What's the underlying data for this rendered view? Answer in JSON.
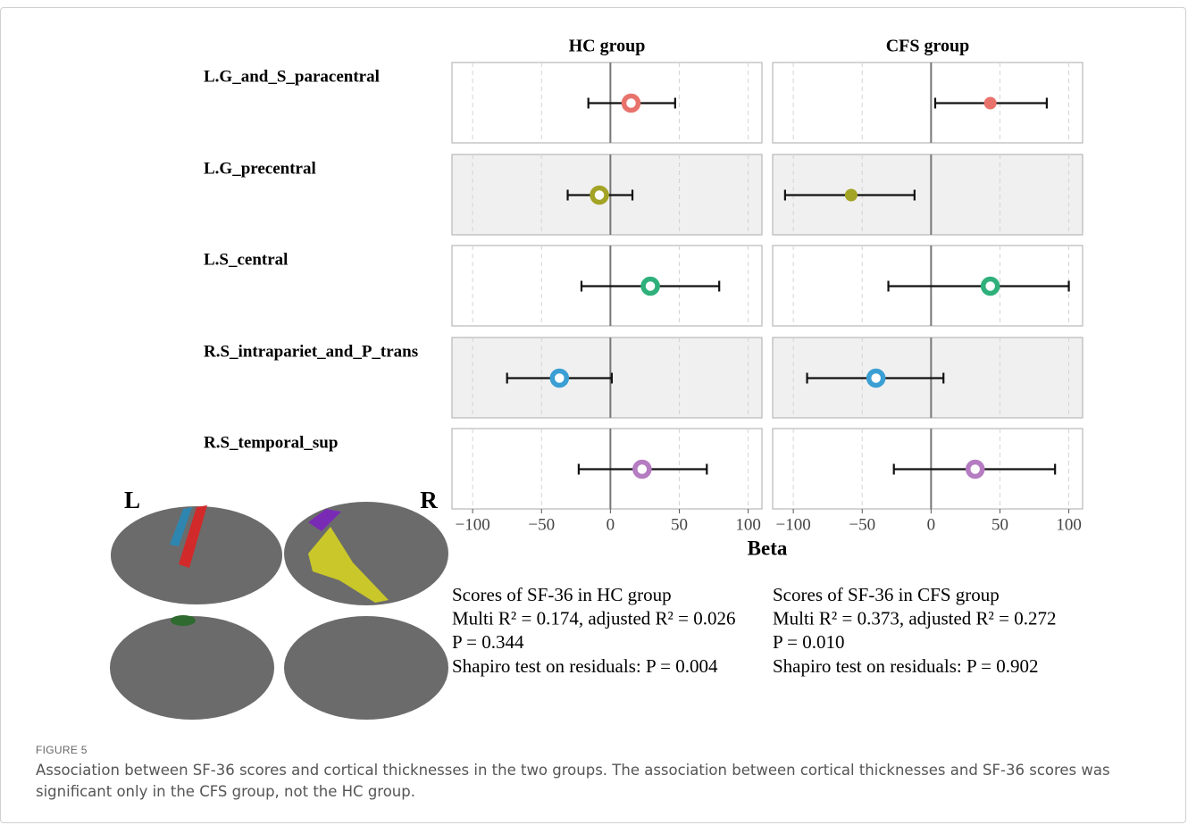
{
  "chart_data": [
    {
      "type": "forest",
      "title": "HC group",
      "categories": [
        "L.G_and_S_paracentral",
        "L.G_precentral",
        "L.S_central",
        "R.S_intrapariet_and_P_trans",
        "R.S_temporal_sup"
      ],
      "values": [
        15,
        -8,
        29,
        -37,
        23
      ],
      "lower": [
        -16,
        -31,
        -21,
        -75,
        -23
      ],
      "upper": [
        47,
        16,
        79,
        1,
        70
      ],
      "colors": [
        "#e8736c",
        "#a3a326",
        "#2fb07b",
        "#3b9fd4",
        "#b57cc2"
      ],
      "filled": [
        false,
        false,
        false,
        false,
        false
      ],
      "xlim": [
        -115,
        110
      ],
      "xticks": [
        {
          "value": -100,
          "label": "−100"
        },
        {
          "value": -50,
          "label": "−50"
        },
        0,
        50,
        100
      ],
      "stats": [
        "Scores of SF-36 in HC group",
        "Multi R² = 0.174, adjusted R² = 0.026",
        "P = 0.344",
        "Shapiro test on residuals: P = 0.004"
      ]
    },
    {
      "type": "forest",
      "title": "CFS group",
      "values": [
        43,
        -58,
        43,
        -40,
        32
      ],
      "lower": [
        3,
        -106,
        -31,
        -90,
        -27
      ],
      "upper": [
        84,
        -12,
        100,
        9,
        90
      ],
      "colors": [
        "#e8736c",
        "#a3a326",
        "#2fb07b",
        "#3b9fd4",
        "#b57cc2"
      ],
      "filled": [
        true,
        true,
        false,
        false,
        false
      ],
      "xlim": [
        -115,
        110
      ],
      "xticks": [
        {
          "value": -100,
          "label": "−100"
        },
        {
          "value": -50,
          "label": "−50"
        },
        0,
        50,
        100
      ],
      "stats": [
        "Scores of SF-36 in CFS group",
        "Multi R² = 0.373, adjusted R² = 0.272",
        "P = 0.010",
        "Shapiro test on residuals: P = 0.902"
      ]
    }
  ],
  "x_axis_label": "Beta",
  "brain_labels": [
    "L",
    "R"
  ],
  "figure": {
    "label": "FIGURE 5",
    "caption": "Association between SF-36 scores and cortical thicknesses in the two groups. The association between cortical thicknesses and SF-36 scores was significant only in the CFS group, not the HC group."
  }
}
